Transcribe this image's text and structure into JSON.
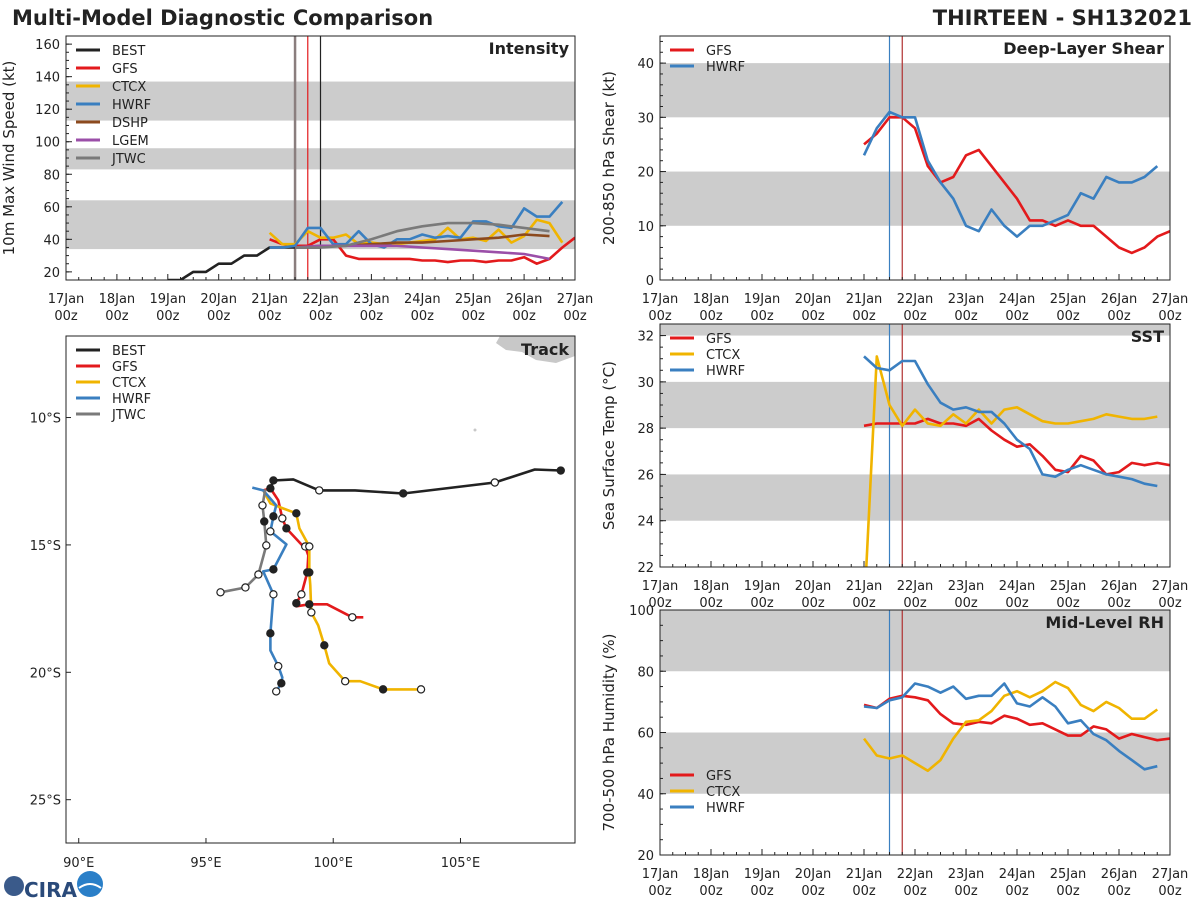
{
  "header": {
    "title": "Multi-Model Diagnostic Comparison",
    "storm": "THIRTEEN - SH132021"
  },
  "logo": {
    "text": "CIRA"
  },
  "time_axis": {
    "ticks": [
      "17Jan",
      "18Jan",
      "19Jan",
      "20Jan",
      "21Jan",
      "22Jan",
      "23Jan",
      "24Jan",
      "25Jan",
      "26Jan",
      "27Jan"
    ],
    "hour": "00z"
  },
  "chart_data": [
    {
      "id": "intensity",
      "type": "line",
      "label": "Intensity",
      "ylabel": "10m Max Wind Speed (kt)",
      "ylim": [
        15,
        165
      ],
      "yticks": [
        20,
        40,
        60,
        80,
        100,
        120,
        140,
        160
      ],
      "yminor": 5,
      "xlim": [
        "17Jan00z",
        "27Jan00z"
      ],
      "bands": [
        [
          34,
          64
        ],
        [
          83,
          96
        ],
        [
          113,
          137
        ]
      ],
      "vlines": [
        {
          "t": "21Jan12z",
          "color": "#8a7e7e"
        },
        {
          "t": "21Jan18z",
          "color": "#e31a1c"
        },
        {
          "t": "22Jan00z",
          "color": "#222222"
        }
      ],
      "legend": "top-left",
      "series": [
        {
          "name": "BEST",
          "color": "#222222",
          "start": "19Jan00z",
          "step_hours": 6,
          "values": [
            15,
            15,
            20,
            20,
            25,
            25,
            30,
            30,
            35,
            35,
            35,
            35,
            35
          ]
        },
        {
          "name": "GFS",
          "color": "#e31a1c",
          "start": "21Jan00z",
          "step_hours": 6,
          "values": [
            40,
            37,
            36,
            36,
            40,
            40,
            30,
            28,
            28,
            28,
            28,
            28,
            27,
            27,
            26,
            27,
            27,
            26,
            27,
            27,
            29,
            25,
            28,
            35,
            41
          ]
        },
        {
          "name": "CTCX",
          "color": "#f0b400",
          "start": "21Jan00z",
          "step_hours": 6,
          "values": [
            44,
            37,
            37,
            45,
            41,
            41,
            43,
            37,
            38,
            37,
            37,
            38,
            39,
            40,
            47,
            40,
            41,
            39,
            46,
            38,
            42,
            52,
            50,
            38
          ]
        },
        {
          "name": "HWRF",
          "color": "#3a7fc0",
          "start": "21Jan00z",
          "step_hours": 6,
          "values": [
            35,
            35,
            36,
            47,
            47,
            37,
            37,
            45,
            37,
            35,
            40,
            40,
            43,
            41,
            42,
            41,
            51,
            51,
            48,
            47,
            59,
            54,
            54,
            63
          ]
        },
        {
          "name": "DSHP",
          "color": "#8c4a1e",
          "start": "21Jan12z",
          "step_hours": 12,
          "values": [
            35,
            36,
            36,
            37,
            38,
            38,
            39,
            40,
            41,
            43,
            42
          ]
        },
        {
          "name": "LGEM",
          "color": "#9b4fa8",
          "start": "21Jan12z",
          "step_hours": 12,
          "values": [
            35,
            36,
            36,
            36,
            36,
            35,
            34,
            33,
            32,
            31,
            28
          ]
        },
        {
          "name": "JTWC",
          "color": "#7a7a7a",
          "start": "21Jan12z",
          "step_hours": 12,
          "values": [
            35,
            35,
            36,
            40,
            45,
            48,
            50,
            50,
            49,
            47,
            45
          ]
        }
      ]
    },
    {
      "id": "shear",
      "type": "line",
      "label": "Deep-Layer Shear",
      "ylabel": "200-850 hPa Shear (kt)",
      "ylim": [
        0,
        45
      ],
      "yticks": [
        0,
        10,
        20,
        30,
        40
      ],
      "yminor": 2,
      "xlim": [
        "17Jan00z",
        "27Jan00z"
      ],
      "bands": [
        [
          10,
          20
        ],
        [
          30,
          40
        ]
      ],
      "vlines": [
        {
          "t": "21Jan12z",
          "color": "#3a7fc0"
        },
        {
          "t": "21Jan18z",
          "color": "#b03030"
        }
      ],
      "legend": "top-left",
      "series": [
        {
          "name": "GFS",
          "color": "#e31a1c",
          "start": "21Jan00z",
          "step_hours": 6,
          "values": [
            25,
            27,
            30,
            30,
            28,
            21,
            18,
            19,
            23,
            24,
            21,
            18,
            15,
            11,
            11,
            10,
            11,
            10,
            10,
            8,
            6,
            5,
            6,
            8,
            9
          ]
        },
        {
          "name": "HWRF",
          "color": "#3a7fc0",
          "start": "21Jan00z",
          "step_hours": 6,
          "values": [
            23,
            28,
            31,
            30,
            30,
            22,
            18,
            15,
            10,
            9,
            13,
            10,
            8,
            10,
            10,
            11,
            12,
            16,
            15,
            19,
            18,
            18,
            19,
            21
          ]
        }
      ]
    },
    {
      "id": "sst",
      "type": "line",
      "label": "SST",
      "ylabel": "Sea Surface Temp (°C)",
      "ylim": [
        22,
        32.5
      ],
      "yticks": [
        22,
        24,
        26,
        28,
        30,
        32
      ],
      "yminor": 0.5,
      "xlim": [
        "17Jan00z",
        "27Jan00z"
      ],
      "bands": [
        [
          24,
          26
        ],
        [
          28,
          30
        ],
        [
          32,
          34
        ]
      ],
      "vlines": [
        {
          "t": "21Jan12z",
          "color": "#3a7fc0"
        },
        {
          "t": "21Jan18z",
          "color": "#b03030"
        }
      ],
      "legend": "top-left",
      "series": [
        {
          "name": "GFS",
          "color": "#e31a1c",
          "start": "21Jan00z",
          "step_hours": 6,
          "values": [
            28.1,
            28.2,
            28.2,
            28.2,
            28.2,
            28.4,
            28.2,
            28.2,
            28.1,
            28.4,
            27.9,
            27.5,
            27.2,
            27.3,
            26.8,
            26.2,
            26.1,
            26.8,
            26.6,
            26.0,
            26.1,
            26.5,
            26.4,
            26.5,
            26.4
          ]
        },
        {
          "name": "CTCX",
          "color": "#f0b400",
          "start": "21Jan00z",
          "step_hours": 6,
          "values": [
            20.0,
            31.1,
            29.0,
            28.1,
            28.8,
            28.2,
            28.1,
            28.6,
            28.2,
            28.8,
            28.2,
            28.8,
            28.9,
            28.6,
            28.3,
            28.2,
            28.2,
            28.3,
            28.4,
            28.6,
            28.5,
            28.4,
            28.4,
            28.5
          ]
        },
        {
          "name": "HWRF",
          "color": "#3a7fc0",
          "start": "21Jan00z",
          "step_hours": 6,
          "values": [
            31.1,
            30.6,
            30.5,
            30.9,
            30.9,
            29.9,
            29.1,
            28.8,
            28.9,
            28.7,
            28.7,
            28.2,
            27.5,
            27.1,
            26.0,
            25.9,
            26.2,
            26.4,
            26.2,
            26.0,
            25.9,
            25.8,
            25.6,
            25.5
          ]
        }
      ]
    },
    {
      "id": "rh",
      "type": "line",
      "label": "Mid-Level RH",
      "ylabel": "700-500 hPa Humidity (%)",
      "ylim": [
        20,
        100
      ],
      "yticks": [
        20,
        40,
        60,
        80,
        100
      ],
      "yminor": 5,
      "xlim": [
        "17Jan00z",
        "27Jan00z"
      ],
      "bands": [
        [
          40,
          60
        ],
        [
          80,
          100
        ]
      ],
      "vlines": [
        {
          "t": "21Jan12z",
          "color": "#3a7fc0"
        },
        {
          "t": "21Jan18z",
          "color": "#b03030"
        }
      ],
      "legend": "bottom-left",
      "series": [
        {
          "name": "GFS",
          "color": "#e31a1c",
          "start": "21Jan00z",
          "step_hours": 6,
          "values": [
            69,
            68,
            71,
            72,
            71.5,
            70.5,
            66,
            63,
            62.5,
            63.5,
            63,
            65.5,
            64.5,
            62.5,
            63,
            61,
            59,
            59,
            62,
            61,
            58,
            59.5,
            58.5,
            57.5,
            58
          ]
        },
        {
          "name": "CTCX",
          "color": "#f0b400",
          "start": "21Jan00z",
          "step_hours": 6,
          "values": [
            58,
            52.5,
            51.5,
            52.5,
            50,
            47.5,
            51,
            58,
            63.5,
            64,
            67,
            72,
            73.5,
            71.5,
            73.5,
            76.5,
            74.5,
            69,
            67,
            70,
            68,
            64.5,
            64.5,
            67.5
          ]
        },
        {
          "name": "HWRF",
          "color": "#3a7fc0",
          "start": "21Jan00z",
          "step_hours": 6,
          "values": [
            68.5,
            68,
            70.5,
            71.5,
            76,
            75,
            73,
            75,
            71,
            72,
            72,
            76,
            69.5,
            68.5,
            71.5,
            68.5,
            63,
            64,
            59.5,
            57.5,
            54,
            51,
            48,
            49
          ]
        }
      ]
    },
    {
      "id": "track",
      "type": "map-track",
      "label": "Track",
      "lon_range": [
        89.5,
        109.5
      ],
      "lat_range": [
        -6.8,
        -26.7
      ],
      "lon_ticks": [
        {
          "v": 90,
          "label": "90°E"
        },
        {
          "v": 95,
          "label": "95°E"
        },
        {
          "v": 100,
          "label": "100°E"
        },
        {
          "v": 105,
          "label": "105°E"
        }
      ],
      "lat_ticks": [
        {
          "v": -10,
          "label": "10°S"
        },
        {
          "v": -15,
          "label": "15°S"
        },
        {
          "v": -20,
          "label": "20°S"
        },
        {
          "v": -25,
          "label": "25°S"
        }
      ],
      "legend": "top-left",
      "marker_key": {
        "f": "00z (filled)",
        "o": "12z (open)"
      },
      "series": [
        {
          "name": "BEST",
          "color": "#222222",
          "points": [
            [
              108.94,
              -12.08,
              "f"
            ],
            [
              107.92,
              -12.04,
              ""
            ],
            [
              106.35,
              -12.55,
              "o"
            ],
            [
              102.75,
              -12.98,
              "f"
            ],
            [
              100.86,
              -12.86,
              ""
            ],
            [
              99.45,
              -12.86,
              "o"
            ],
            [
              98.43,
              -12.43,
              ""
            ],
            [
              97.65,
              -12.47,
              "f"
            ],
            [
              97.53,
              -12.78,
              "f"
            ]
          ]
        },
        {
          "name": "GFS",
          "color": "#e31a1c",
          "points": [
            [
              97.25,
              -12.86,
              ""
            ],
            [
              97.53,
              -12.78,
              ""
            ],
            [
              97.84,
              -13.25,
              ""
            ],
            [
              98.0,
              -13.96,
              "o"
            ],
            [
              98.16,
              -14.35,
              "f"
            ],
            [
              98.82,
              -15.06,
              ""
            ],
            [
              98.9,
              -15.06,
              "o"
            ],
            [
              99.02,
              -15.41,
              ""
            ],
            [
              98.98,
              -16.08,
              "f"
            ],
            [
              98.75,
              -16.94,
              "o"
            ],
            [
              98.55,
              -17.29,
              "f"
            ],
            [
              98.55,
              -17.41,
              ""
            ],
            [
              99.06,
              -17.33,
              "f"
            ],
            [
              99.76,
              -17.33,
              ""
            ],
            [
              100.75,
              -17.84,
              "o"
            ],
            [
              101.18,
              -17.84,
              ""
            ]
          ]
        },
        {
          "name": "CTCX",
          "color": "#f0b400",
          "points": [
            [
              97.25,
              -12.86,
              ""
            ],
            [
              97.53,
              -13.37,
              ""
            ],
            [
              98.04,
              -13.57,
              ""
            ],
            [
              98.55,
              -13.76,
              "f"
            ],
            [
              98.67,
              -14.35,
              ""
            ],
            [
              99.06,
              -15.06,
              "o"
            ],
            [
              99.06,
              -16.08,
              "f"
            ],
            [
              99.1,
              -16.59,
              ""
            ],
            [
              99.14,
              -17.65,
              "o"
            ],
            [
              99.41,
              -18.16,
              ""
            ],
            [
              99.65,
              -18.94,
              "f"
            ],
            [
              99.84,
              -19.65,
              ""
            ],
            [
              100.47,
              -20.35,
              "o"
            ],
            [
              101.06,
              -20.35,
              ""
            ],
            [
              101.96,
              -20.67,
              "f"
            ],
            [
              103.45,
              -20.67,
              "o"
            ]
          ]
        },
        {
          "name": "HWRF",
          "color": "#3a7fc0",
          "points": [
            [
              96.82,
              -12.75,
              ""
            ],
            [
              97.25,
              -12.86,
              ""
            ],
            [
              97.76,
              -13.45,
              ""
            ],
            [
              97.65,
              -13.88,
              "f"
            ],
            [
              97.53,
              -14.47,
              "o"
            ],
            [
              98.16,
              -14.98,
              ""
            ],
            [
              97.65,
              -15.96,
              "f"
            ],
            [
              97.25,
              -16.04,
              ""
            ],
            [
              97.65,
              -16.94,
              "o"
            ],
            [
              97.53,
              -18.47,
              "f"
            ],
            [
              97.53,
              -19.14,
              ""
            ],
            [
              97.84,
              -19.76,
              "o"
            ],
            [
              98.0,
              -20.2,
              ""
            ],
            [
              97.96,
              -20.43,
              "f"
            ],
            [
              97.76,
              -20.75,
              "o"
            ]
          ]
        },
        {
          "name": "JTWC",
          "color": "#7a7a7a",
          "points": [
            [
              97.33,
              -12.82,
              ""
            ],
            [
              97.22,
              -13.45,
              "o"
            ],
            [
              97.29,
              -14.08,
              "f"
            ],
            [
              97.37,
              -15.02,
              "o"
            ],
            [
              97.06,
              -16.16,
              "o"
            ],
            [
              96.55,
              -16.67,
              "o"
            ],
            [
              95.57,
              -16.86,
              "o"
            ]
          ]
        }
      ]
    }
  ]
}
